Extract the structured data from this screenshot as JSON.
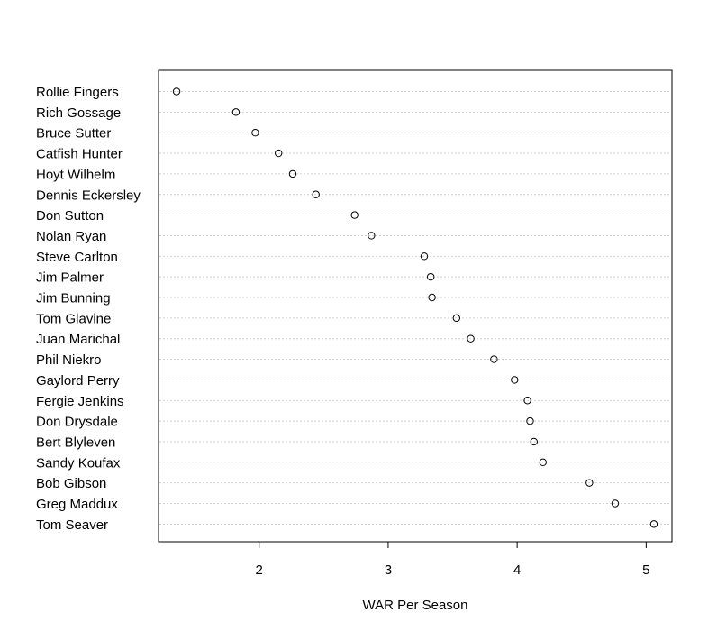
{
  "chart_data": {
    "type": "scatter",
    "title": "",
    "xlabel": "WAR Per Season",
    "ylabel": "",
    "xlim": [
      1.22,
      5.2
    ],
    "x_ticks": [
      2,
      3,
      4,
      5
    ],
    "grid": "dotted horizontal row lines",
    "categories": [
      "Rollie Fingers",
      "Rich Gossage",
      "Bruce Sutter",
      "Catfish Hunter",
      "Hoyt Wilhelm",
      "Dennis Eckersley",
      "Don Sutton",
      "Nolan Ryan",
      "Steve Carlton",
      "Jim Palmer",
      "Jim Bunning",
      "Tom Glavine",
      "Juan Marichal",
      "Phil Niekro",
      "Gaylord Perry",
      "Fergie Jenkins",
      "Don Drysdale",
      "Bert Blyleven",
      "Sandy Koufax",
      "Bob Gibson",
      "Greg Maddux",
      "Tom Seaver"
    ],
    "values": [
      1.36,
      1.82,
      1.97,
      2.15,
      2.26,
      2.44,
      2.74,
      2.87,
      3.28,
      3.33,
      3.34,
      3.53,
      3.64,
      3.82,
      3.98,
      4.08,
      4.1,
      4.13,
      4.2,
      4.56,
      4.76,
      5.06
    ]
  }
}
